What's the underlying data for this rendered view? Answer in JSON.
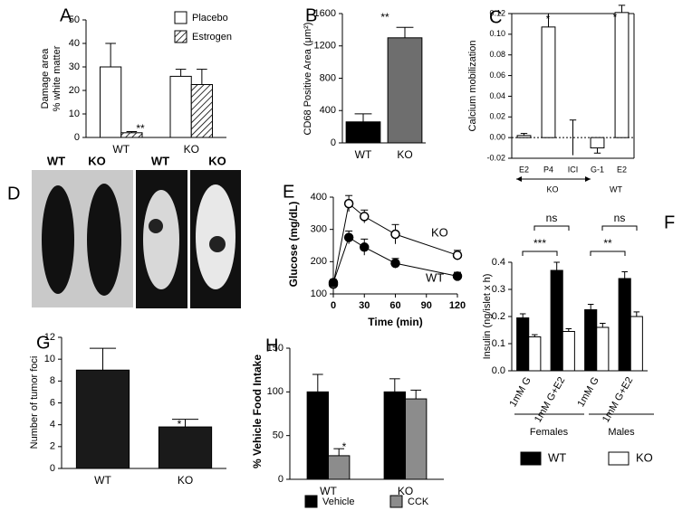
{
  "panel_d": {
    "label": "D",
    "labels": [
      "WT",
      "KO",
      "WT",
      "KO"
    ]
  },
  "chart_data": [
    {
      "type": "bar",
      "panel": "A",
      "ylabel": [
        "Damage area",
        "% white matter"
      ],
      "categories": [
        "WT",
        "KO"
      ],
      "series": [
        {
          "name": "Placebo",
          "color": "#ffffff",
          "values": [
            30,
            26
          ],
          "errors": [
            10,
            3
          ]
        },
        {
          "name": "Estrogen",
          "color": "#ffffff",
          "pattern": "hatch",
          "values": [
            2,
            22.5
          ],
          "errors": [
            0.5,
            6.5
          ]
        }
      ],
      "ylim": [
        0,
        50
      ],
      "yticks": [
        0,
        10,
        20,
        30,
        40,
        50
      ],
      "annotations": [
        "**"
      ]
    },
    {
      "type": "bar",
      "panel": "B",
      "ylabel": "CD68 Positive Area (μm²)",
      "categories": [
        "WT",
        "KO"
      ],
      "values": [
        260,
        1300
      ],
      "errors": [
        100,
        130
      ],
      "colors": [
        "#000000",
        "#6e6e6e"
      ],
      "ylim": [
        0,
        1600
      ],
      "yticks": [
        0,
        400,
        800,
        1200,
        1600
      ],
      "annotations": [
        "**"
      ]
    },
    {
      "type": "bar",
      "panel": "C",
      "ylabel": "Calcium mobilization",
      "categories": [
        "E2",
        "P4",
        "ICI",
        "G-1",
        "E2"
      ],
      "values": [
        0.002,
        0.107,
        0,
        -0.01,
        0.121
      ],
      "errors": [
        0.002,
        0.013,
        0.017,
        0.005,
        0.007
      ],
      "color": "#ffffff",
      "group_labels": [
        "KO",
        "WT"
      ],
      "ylim": [
        -0.02,
        0.12
      ],
      "yticks": [
        -0.02,
        {
          "value": 0,
          "label": "0.00"
        },
        0.02,
        0.04,
        0.06,
        0.08,
        {
          "value": 0.1,
          "label": "0.10"
        },
        0.12
      ],
      "annotations": [
        "*",
        "*"
      ]
    },
    {
      "type": "line",
      "panel": "E",
      "ylabel": "Glucose (mg/dL)",
      "xlabel": "Time (min)",
      "x": [
        0,
        15,
        30,
        60,
        120
      ],
      "series": [
        {
          "name": "KO",
          "marker": "open",
          "values": [
            130,
            380,
            340,
            285,
            220
          ],
          "errors": [
            10,
            25,
            20,
            30,
            15
          ]
        },
        {
          "name": "WT",
          "marker": "filled",
          "values": [
            135,
            275,
            245,
            195,
            155
          ],
          "errors": [
            10,
            20,
            25,
            15,
            12
          ]
        }
      ],
      "xlim": [
        0,
        120
      ],
      "xticks": [
        0,
        30,
        60,
        90,
        120
      ],
      "ylim": [
        100,
        400
      ],
      "yticks": [
        100,
        200,
        300,
        400
      ]
    },
    {
      "type": "bar",
      "panel": "F",
      "ylabel": "Insulin (ng/islet x h)",
      "categories": [
        "1mM G",
        "1mM G+E2",
        "1mM G",
        "1mM G+E2"
      ],
      "group_labels": [
        "Females",
        "Males"
      ],
      "series": [
        {
          "name": "WT",
          "color": "#000000",
          "values": [
            0.195,
            0.37,
            0.225,
            0.34
          ],
          "errors": [
            0.015,
            0.03,
            0.02,
            0.025
          ]
        },
        {
          "name": "KO",
          "color": "#ffffff",
          "values": [
            0.125,
            0.145,
            0.16,
            0.2
          ],
          "errors": [
            0.008,
            0.01,
            0.015,
            0.017
          ]
        }
      ],
      "ylim": [
        0,
        0.4
      ],
      "yticks": [
        {
          "value": 0,
          "label": "0.0"
        },
        0.1,
        0.2,
        0.3,
        0.4
      ],
      "annotations": [
        "***",
        "ns",
        "**",
        "ns"
      ]
    },
    {
      "type": "bar",
      "panel": "G",
      "ylabel": "Number of tumor foci",
      "categories": [
        "WT",
        "KO"
      ],
      "values": [
        9,
        3.8
      ],
      "errors": [
        2,
        0.7
      ],
      "color": "#1a1a1a",
      "ylim": [
        0,
        12
      ],
      "yticks": [
        0,
        2,
        4,
        6,
        8,
        10,
        12
      ],
      "annotations": [
        "*"
      ]
    },
    {
      "type": "bar",
      "panel": "H",
      "ylabel": "% Vehicle Food Intake",
      "categories": [
        "WT",
        "KO"
      ],
      "series": [
        {
          "name": "Vehicle",
          "color": "#000000",
          "values": [
            100,
            100
          ],
          "errors": [
            20,
            15
          ]
        },
        {
          "name": "CCK",
          "color": "#8c8c8c",
          "values": [
            27,
            92
          ],
          "errors": [
            8,
            10
          ]
        }
      ],
      "ylim": [
        0,
        150
      ],
      "yticks": [
        0,
        50,
        100,
        150
      ],
      "annotations": [
        "*"
      ]
    }
  ]
}
